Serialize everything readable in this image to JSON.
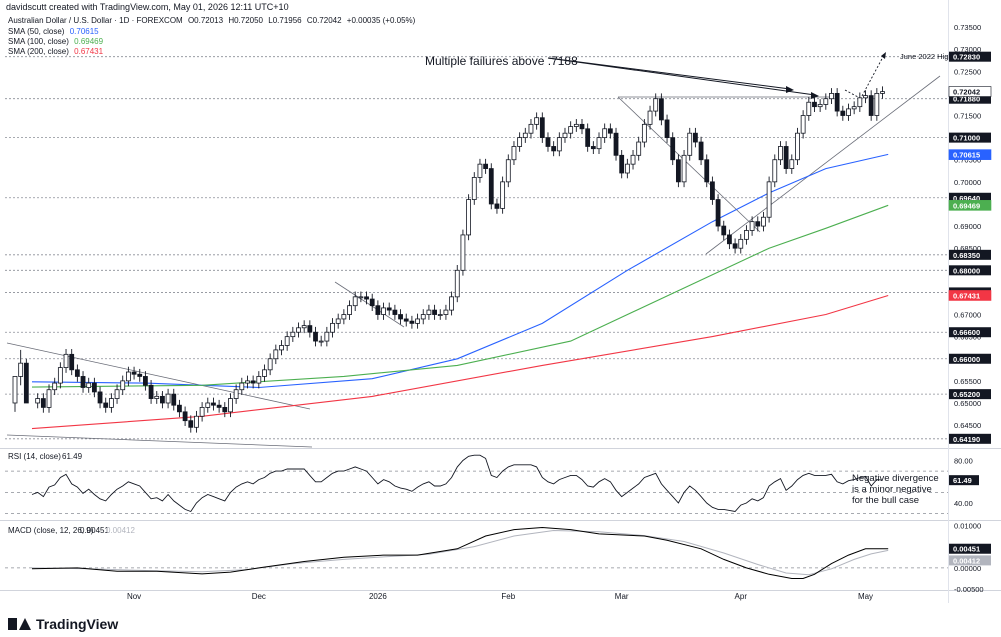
{
  "header": {
    "credit": "davidscutt created with TradingView.com, May 01, 2026 12:11 UTC+10",
    "symbol_title": "Australian Dollar / U.S. Dollar · 1D · FOREXCOM",
    "ohlc": {
      "open": "O0.72013",
      "high": "H0.72050",
      "low": "L0.71956",
      "close": "C0.72042",
      "change": "+0.00035 (+0.05%)"
    },
    "indicators": [
      {
        "label": "SMA (50, close)",
        "value": "0.70615",
        "color": "#2962ff"
      },
      {
        "label": "SMA (100, close)",
        "value": "0.69469",
        "color": "#4caf50"
      },
      {
        "label": "SMA (200, close)",
        "value": "0.67431",
        "color": "#f23645"
      }
    ]
  },
  "chart_data": [
    {
      "type": "candlestick",
      "title": "Australian Dollar / U.S. Dollar · 1D · FOREXCOM",
      "ylim": [
        0.6405,
        0.7375
      ],
      "y_ticks": [
        "0.73500",
        "0.73000",
        "0.72500",
        "0.72000",
        "0.71500",
        "0.71000",
        "0.70500",
        "0.70000",
        "0.69500",
        "0.69000",
        "0.68500",
        "0.68000",
        "0.67500",
        "0.67000",
        "0.66500",
        "0.66000",
        "0.65500",
        "0.65000",
        "0.64500"
      ],
      "x_ticks": [
        {
          "label": "Nov",
          "date": "2025-11-01"
        },
        {
          "label": "Dec",
          "date": "2025-12-01"
        },
        {
          "label": "2026",
          "date": "2026-01-01"
        },
        {
          "label": "Feb",
          "date": "2026-02-01"
        },
        {
          "label": "Mar",
          "date": "2026-03-01"
        },
        {
          "label": "Apr",
          "date": "2026-04-01"
        },
        {
          "label": "May",
          "date": "2026-05-01"
        }
      ],
      "first_date": "2025-10-08",
      "close_series": [
        0.65,
        0.651,
        0.649,
        0.653,
        0.6545,
        0.658,
        0.661,
        0.6575,
        0.656,
        0.6535,
        0.6545,
        0.6525,
        0.65,
        0.649,
        0.651,
        0.653,
        0.655,
        0.657,
        0.6565,
        0.656,
        0.654,
        0.651,
        0.6515,
        0.65,
        0.652,
        0.6495,
        0.648,
        0.646,
        0.6445,
        0.647,
        0.649,
        0.65,
        0.6495,
        0.649,
        0.648,
        0.651,
        0.653,
        0.6545,
        0.655,
        0.6545,
        0.656,
        0.6575,
        0.66,
        0.662,
        0.663,
        0.665,
        0.666,
        0.667,
        0.6675,
        0.666,
        0.664,
        0.664,
        0.666,
        0.668,
        0.669,
        0.67,
        0.672,
        0.674,
        0.674,
        0.6735,
        0.672,
        0.67,
        0.6715,
        0.671,
        0.67,
        0.669,
        0.6685,
        0.668,
        0.669,
        0.67,
        0.671,
        0.67,
        0.67,
        0.671,
        0.674,
        0.68,
        0.688,
        0.696,
        0.701,
        0.704,
        0.703,
        0.695,
        0.694,
        0.7,
        0.705,
        0.708,
        0.71,
        0.711,
        0.713,
        0.7145,
        0.71,
        0.708,
        0.707,
        0.71,
        0.711,
        0.7125,
        0.713,
        0.712,
        0.708,
        0.7075,
        0.71,
        0.712,
        0.711,
        0.706,
        0.702,
        0.704,
        0.706,
        0.709,
        0.713,
        0.716,
        0.7188,
        0.714,
        0.71,
        0.705,
        0.7,
        0.706,
        0.711,
        0.709,
        0.705,
        0.7,
        0.696,
        0.69,
        0.688,
        0.686,
        0.685,
        0.687,
        0.689,
        0.691,
        0.69,
        0.692,
        0.7,
        0.705,
        0.708,
        0.703,
        0.705,
        0.711,
        0.715,
        0.718,
        0.717,
        0.7175,
        0.7188,
        0.72,
        0.716,
        0.715,
        0.7165,
        0.717,
        0.719,
        0.7195,
        0.715,
        0.72,
        0.7204
      ],
      "candles_pre": [
        {
          "o": 0.65,
          "h": 0.652,
          "l": 0.648
        },
        {
          "o": 0.656,
          "h": 0.662,
          "l": 0.654
        },
        {
          "o": 0.659,
          "h": 0.66,
          "l": 0.654
        }
      ],
      "sma": [
        {
          "name": "SMA (50, close)",
          "color": "#2962ff",
          "points": [
            [
              0,
              0.6548
            ],
            [
              20,
              0.6545
            ],
            [
              40,
              0.6535
            ],
            [
              60,
              0.6555
            ],
            [
              75,
              0.66
            ],
            [
              90,
              0.668
            ],
            [
              105,
              0.68
            ],
            [
              120,
              0.691
            ],
            [
              130,
              0.6975
            ],
            [
              140,
              0.703
            ],
            [
              151,
              0.7062
            ]
          ]
        },
        {
          "name": "SMA (100, close)",
          "color": "#4caf50",
          "points": [
            [
              0,
              0.6536
            ],
            [
              30,
              0.654
            ],
            [
              55,
              0.656
            ],
            [
              75,
              0.6585
            ],
            [
              95,
              0.664
            ],
            [
              115,
              0.676
            ],
            [
              130,
              0.685
            ],
            [
              140,
              0.6895
            ],
            [
              151,
              0.6947
            ]
          ]
        },
        {
          "name": "SMA (200, close)",
          "color": "#f23645",
          "points": [
            [
              0,
              0.6442
            ],
            [
              30,
              0.647
            ],
            [
              60,
              0.6515
            ],
            [
              90,
              0.6585
            ],
            [
              120,
              0.665
            ],
            [
              140,
              0.67
            ],
            [
              151,
              0.6743
            ]
          ]
        }
      ],
      "horizontal_levels": [
        {
          "value": 0.7283,
          "label": "0.72830"
        },
        {
          "value": 0.7188,
          "label": "0.71880"
        },
        {
          "value": 0.71,
          "label": "0.71000"
        },
        {
          "value": 0.6964,
          "label": "0.69640"
        },
        {
          "value": 0.6835,
          "label": "0.68350"
        },
        {
          "value": 0.68,
          "label": "0.68000"
        },
        {
          "value": 0.675,
          "label": "0.67500"
        },
        {
          "value": 0.666,
          "label": "0.66600"
        },
        {
          "value": 0.66,
          "label": "0.66000"
        },
        {
          "value": 0.652,
          "label": "0.65200"
        },
        {
          "value": 0.6419,
          "label": "0.64190"
        }
      ],
      "price_tags": [
        {
          "value": 0.72042,
          "label": "0.72042",
          "bg": "#ffffff",
          "fg": "#131722"
        },
        {
          "value": 0.70615,
          "label": "0.70615",
          "bg": "#2962ff",
          "fg": "#ffffff"
        },
        {
          "value": 0.69469,
          "label": "0.69469",
          "bg": "#4caf50",
          "fg": "#ffffff"
        },
        {
          "value": 0.67431,
          "label": "0.67431",
          "bg": "#f23645",
          "fg": "#ffffff"
        }
      ],
      "annotations": [
        {
          "text": "Multiple failures above .7188"
        },
        {
          "text": "June 2022 High"
        }
      ]
    },
    {
      "type": "line",
      "title": "RSI (14, close)",
      "value_label": "61.49",
      "ylim": [
        24,
        88
      ],
      "y_ticks": [
        "80.00",
        "40.00"
      ],
      "bands": [
        70,
        50,
        30
      ],
      "values": [
        48,
        50,
        46,
        55,
        57,
        64,
        67,
        58,
        55,
        49,
        53,
        48,
        44,
        42,
        48,
        53,
        56,
        60,
        58,
        56,
        50,
        44,
        45,
        42,
        48,
        42,
        38,
        34,
        32,
        40,
        45,
        48,
        46,
        44,
        42,
        50,
        55,
        58,
        60,
        58,
        62,
        64,
        68,
        70,
        70,
        72,
        72,
        72,
        72,
        66,
        60,
        60,
        64,
        68,
        70,
        70,
        72,
        74,
        72,
        70,
        64,
        58,
        62,
        60,
        56,
        54,
        53,
        51,
        55,
        58,
        60,
        56,
        56,
        58,
        64,
        74,
        80,
        84,
        85,
        85,
        82,
        66,
        64,
        70,
        74,
        76,
        76,
        76,
        76,
        74,
        64,
        60,
        58,
        62,
        64,
        66,
        66,
        62,
        56,
        55,
        60,
        63,
        60,
        52,
        46,
        50,
        54,
        58,
        64,
        66,
        68,
        58,
        52,
        46,
        40,
        50,
        56,
        52,
        46,
        40,
        36,
        34,
        34,
        33,
        32,
        38,
        40,
        44,
        42,
        45,
        56,
        60,
        63,
        52,
        56,
        62,
        66,
        68,
        66,
        66,
        66,
        67,
        60,
        58,
        61,
        62,
        64,
        65,
        56,
        62,
        61.49
      ],
      "annotation": [
        "Negative divergence",
        "is a minor negative",
        "for the bull case"
      ]
    },
    {
      "type": "line",
      "title": "MACD (close, 12, 26, 9)",
      "values_label": [
        "0.00451",
        "0.00412"
      ],
      "ylim": [
        -0.0052,
        0.0108
      ],
      "y_ticks": [
        "0.01000",
        "0.00000",
        "-0.00500"
      ],
      "series": [
        {
          "name": "MACD",
          "color": "#000000",
          "points": [
            [
              0,
              -0.0002
            ],
            [
              8,
              0.0
            ],
            [
              15,
              -0.0008
            ],
            [
              22,
              -0.0008
            ],
            [
              30,
              -0.0014
            ],
            [
              35,
              -0.001
            ],
            [
              40,
              0.0
            ],
            [
              48,
              0.0015
            ],
            [
              55,
              0.0025
            ],
            [
              62,
              0.003
            ],
            [
              68,
              0.003
            ],
            [
              75,
              0.0045
            ],
            [
              80,
              0.0075
            ],
            [
              85,
              0.009
            ],
            [
              90,
              0.0095
            ],
            [
              95,
              0.009
            ],
            [
              100,
              0.008
            ],
            [
              108,
              0.0075
            ],
            [
              112,
              0.0065
            ],
            [
              118,
              0.0045
            ],
            [
              122,
              0.002
            ],
            [
              126,
              0.0
            ],
            [
              130,
              -0.0015
            ],
            [
              134,
              -0.0025
            ],
            [
              136,
              -0.0025
            ],
            [
              138,
              -0.0015
            ],
            [
              141,
              0.001
            ],
            [
              144,
              0.003
            ],
            [
              147,
              0.0045
            ],
            [
              151,
              0.00451
            ]
          ]
        },
        {
          "name": "Signal",
          "color": "#b2b5be",
          "points": [
            [
              0,
              0.0
            ],
            [
              10,
              -0.0002
            ],
            [
              20,
              -0.0006
            ],
            [
              30,
              -0.0009
            ],
            [
              38,
              -0.0004
            ],
            [
              46,
              0.001
            ],
            [
              55,
              0.002
            ],
            [
              62,
              0.0026
            ],
            [
              70,
              0.0032
            ],
            [
              78,
              0.005
            ],
            [
              85,
              0.0075
            ],
            [
              92,
              0.0088
            ],
            [
              100,
              0.0085
            ],
            [
              108,
              0.0076
            ],
            [
              115,
              0.0062
            ],
            [
              122,
              0.0035
            ],
            [
              128,
              0.0008
            ],
            [
              133,
              -0.0012
            ],
            [
              137,
              -0.0016
            ],
            [
              141,
              -0.0002
            ],
            [
              145,
              0.002
            ],
            [
              148,
              0.0033
            ],
            [
              151,
              0.00412
            ]
          ]
        }
      ]
    }
  ],
  "brand": {
    "name": "TradingView"
  }
}
